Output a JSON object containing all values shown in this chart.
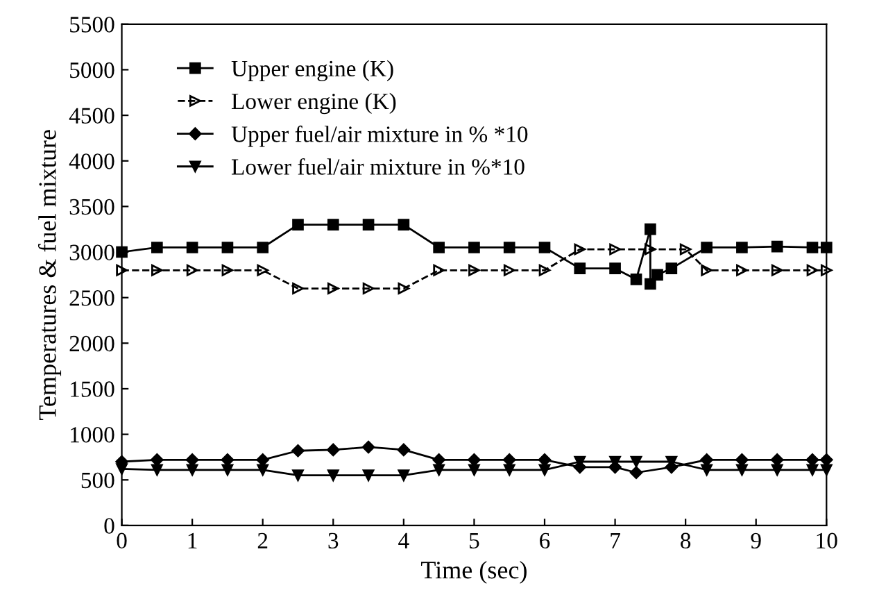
{
  "chart_data": {
    "type": "line",
    "xlabel": "Time (sec)",
    "ylabel": "Temperatures & fuel mixture",
    "xlim": [
      0,
      10
    ],
    "ylim": [
      0,
      5500
    ],
    "xticks": [
      0,
      1,
      2,
      3,
      4,
      5,
      6,
      7,
      8,
      9,
      10
    ],
    "yticks": [
      0,
      500,
      1000,
      1500,
      2000,
      2500,
      3000,
      3500,
      4000,
      4500,
      5000,
      5500
    ],
    "grid": false,
    "legend": "top left",
    "series": [
      {
        "name": "Upper engine (K)",
        "color": "#000000",
        "marker": "square",
        "line_style": "solid",
        "x": [
          0,
          0.5,
          1,
          1.5,
          2,
          2.5,
          3,
          3.5,
          4,
          4.5,
          5,
          5.5,
          6,
          6.5,
          7,
          7.3,
          7.5,
          7.5,
          7.6,
          7.8,
          8.3,
          8.8,
          9.3,
          9.8,
          10
        ],
        "values": [
          3000,
          3050,
          3050,
          3050,
          3050,
          3300,
          3300,
          3300,
          3300,
          3050,
          3050,
          3050,
          3050,
          2820,
          2820,
          2700,
          3250,
          2650,
          2750,
          2820,
          3050,
          3050,
          3060,
          3050,
          3050
        ]
      },
      {
        "name": "Lower engine (K)",
        "color": "#000000",
        "marker": "triangle_right",
        "line_style": "dashed",
        "x": [
          0,
          0.5,
          1,
          1.5,
          2,
          2.5,
          3,
          3.5,
          4,
          4.5,
          5,
          5.5,
          6,
          6.5,
          7,
          7.5,
          8,
          8.3,
          8.8,
          9.3,
          9.8,
          10
        ],
        "values": [
          2800,
          2800,
          2800,
          2800,
          2800,
          2600,
          2600,
          2600,
          2600,
          2800,
          2800,
          2800,
          2800,
          3030,
          3030,
          3030,
          3030,
          2800,
          2800,
          2800,
          2800,
          2800
        ]
      },
      {
        "name": "Upper fuel/air mixture in % *10",
        "color": "#000000",
        "marker": "diamond",
        "line_style": "solid",
        "x": [
          0,
          0.5,
          1,
          1.5,
          2,
          2.5,
          3,
          3.5,
          4,
          4.5,
          5,
          5.5,
          6,
          6.5,
          7,
          7.3,
          7.8,
          8.3,
          8.8,
          9.3,
          9.8,
          10
        ],
        "values": [
          700,
          720,
          720,
          720,
          720,
          820,
          830,
          860,
          830,
          720,
          720,
          720,
          720,
          640,
          640,
          580,
          640,
          720,
          720,
          720,
          720,
          720
        ]
      },
      {
        "name": "Lower fuel/air mixture in %*10",
        "color": "#000000",
        "marker": "triangle_down",
        "line_style": "solid",
        "x": [
          0,
          0.5,
          1,
          1.5,
          2,
          2.5,
          3,
          3.5,
          4,
          4.5,
          5,
          5.5,
          6,
          6.5,
          7,
          7.3,
          7.8,
          8.3,
          8.8,
          9.3,
          9.8,
          10
        ],
        "values": [
          620,
          610,
          610,
          610,
          610,
          550,
          550,
          550,
          550,
          610,
          610,
          610,
          610,
          700,
          700,
          700,
          700,
          610,
          610,
          610,
          610,
          610
        ]
      }
    ]
  }
}
